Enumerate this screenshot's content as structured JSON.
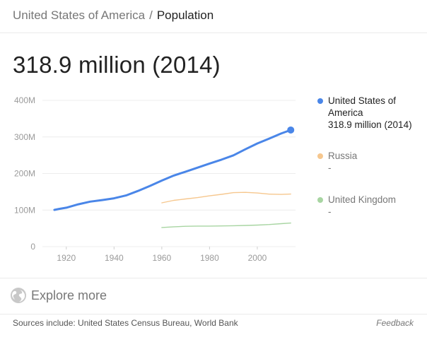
{
  "breadcrumb": {
    "country": "United States of America",
    "separator": "/",
    "metric": "Population"
  },
  "headline": "318.9 million (2014)",
  "chart_data": {
    "type": "line",
    "title": "",
    "xlabel": "",
    "ylabel": "",
    "xlim": [
      1910,
      2016
    ],
    "ylim": [
      0,
      400
    ],
    "x_ticks": [
      1920,
      1940,
      1960,
      1980,
      2000
    ],
    "y_ticks": [
      0,
      100,
      200,
      300,
      400
    ],
    "y_tick_labels": [
      "0",
      "100M",
      "200M",
      "300M",
      "400M"
    ],
    "grid": true,
    "legend_position": "right",
    "series": [
      {
        "name": "United States of America",
        "color": "#4a86e8",
        "highlighted": true,
        "x": [
          1915,
          1917,
          1920,
          1925,
          1930,
          1935,
          1940,
          1945,
          1950,
          1955,
          1960,
          1965,
          1970,
          1975,
          1980,
          1985,
          1990,
          1995,
          2000,
          2005,
          2010,
          2014
        ],
        "y": [
          100.5,
          103.2,
          106.5,
          115.8,
          123.1,
          127.3,
          132.1,
          139.9,
          152.3,
          165.9,
          180.7,
          194.3,
          205.1,
          216.0,
          227.2,
          237.9,
          249.6,
          266.3,
          282.2,
          295.5,
          309.3,
          318.9
        ]
      },
      {
        "name": "Russia",
        "color": "#f6c78e",
        "highlighted": false,
        "x": [
          1960,
          1965,
          1970,
          1975,
          1980,
          1985,
          1990,
          1995,
          2000,
          2005,
          2010,
          2014
        ],
        "y": [
          119.9,
          126.5,
          130.4,
          134.2,
          139.0,
          143.0,
          147.7,
          148.4,
          146.6,
          143.5,
          142.8,
          143.8
        ]
      },
      {
        "name": "United Kingdom",
        "color": "#a8d5a2",
        "highlighted": false,
        "x": [
          1960,
          1965,
          1970,
          1975,
          1980,
          1985,
          1990,
          1995,
          2000,
          2005,
          2010,
          2014
        ],
        "y": [
          52.4,
          54.3,
          55.7,
          56.2,
          56.3,
          56.6,
          57.2,
          58.0,
          58.9,
          60.4,
          62.8,
          64.6
        ]
      }
    ]
  },
  "legend": [
    {
      "name": "United States of America",
      "value": "318.9 million (2014)",
      "color": "#4a86e8"
    },
    {
      "name": "Russia",
      "value": "-",
      "color": "#f6c78e"
    },
    {
      "name": "United Kingdom",
      "value": "-",
      "color": "#a8d5a2"
    }
  ],
  "explore": {
    "label": "Explore more",
    "icon": "globe-icon"
  },
  "footer": {
    "sources": "Sources include: United States Census Bureau, World Bank",
    "feedback": "Feedback"
  }
}
